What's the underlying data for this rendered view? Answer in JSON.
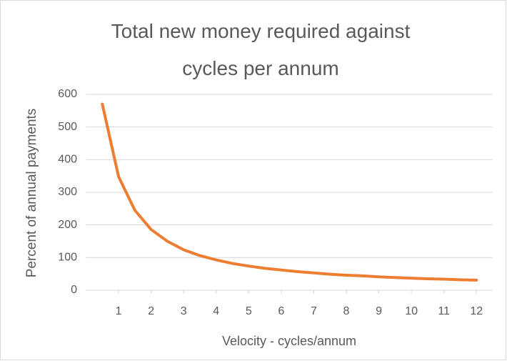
{
  "chart_data": {
    "type": "line",
    "title": "Total new money required against cycles per annum",
    "xlabel": "Velocity - cycles/annum",
    "ylabel": "Percent of annual payments",
    "x": [
      0.5,
      1,
      1.5,
      2,
      2.5,
      3,
      3.5,
      4,
      4.5,
      5,
      5.5,
      6,
      6.5,
      7,
      7.5,
      8,
      8.5,
      9,
      9.5,
      10,
      10.5,
      11,
      11.5,
      12
    ],
    "series": [
      {
        "name": "Percent of annual payments",
        "color": "#ed7d31",
        "values": [
          570,
          348,
          245,
          186,
          150,
          124,
          106,
          93,
          82,
          74,
          67,
          62,
          57,
          53,
          49,
          46,
          44,
          41,
          39,
          37,
          35,
          34,
          32,
          31
        ]
      }
    ],
    "xlim": [
      0,
      12.5
    ],
    "xticks": [
      1,
      2,
      3,
      4,
      5,
      6,
      7,
      8,
      9,
      10,
      11,
      12
    ],
    "ylim": [
      0,
      600
    ],
    "yticks": [
      0,
      100,
      200,
      300,
      400,
      500,
      600
    ],
    "grid": true
  }
}
